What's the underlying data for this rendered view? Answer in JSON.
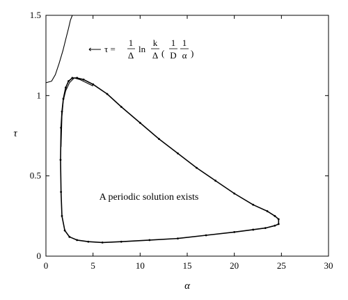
{
  "chart_data": {
    "type": "line",
    "xlabel": "α",
    "ylabel": "τ",
    "xlim": [
      0,
      30
    ],
    "ylim": [
      0,
      1.5
    ],
    "xticks": [
      "0",
      "5",
      "10",
      "15",
      "20",
      "25",
      "30"
    ],
    "yticks": [
      "0",
      "0.5",
      "1",
      "1.5"
    ],
    "grid": false,
    "series": [
      {
        "style": "solid thin",
        "x": [
          0.0,
          0.6,
          1.0,
          1.4,
          1.8,
          2.1,
          2.4,
          2.6,
          2.8
        ],
        "y": [
          1.08,
          1.09,
          1.13,
          1.2,
          1.28,
          1.35,
          1.42,
          1.47,
          1.5
        ]
      },
      {
        "style": "solid with dot markers",
        "x": [
          3.3,
          4.0,
          5.0,
          6.5,
          8.0,
          10.0,
          12.0,
          14.0,
          16.0,
          18.0,
          20.0,
          22.0,
          23.5,
          24.3,
          24.7,
          24.7,
          24.3,
          23.3,
          22.0,
          20.0,
          17.0,
          14.0,
          11.0,
          8.0,
          6.0,
          4.5,
          3.3,
          2.5,
          2.0,
          1.7,
          1.6,
          1.55,
          1.6,
          1.7,
          1.85,
          2.1,
          2.4,
          2.8,
          3.3
        ],
        "y": [
          1.11,
          1.1,
          1.07,
          1.01,
          0.93,
          0.83,
          0.73,
          0.64,
          0.55,
          0.47,
          0.39,
          0.32,
          0.28,
          0.25,
          0.23,
          0.2,
          0.19,
          0.175,
          0.165,
          0.15,
          0.13,
          0.11,
          0.1,
          0.09,
          0.085,
          0.09,
          0.1,
          0.12,
          0.16,
          0.25,
          0.4,
          0.6,
          0.8,
          0.9,
          0.98,
          1.05,
          1.09,
          1.11,
          1.11
        ]
      },
      {
        "style": "solid thin",
        "x": [
          1.6,
          1.7,
          1.85,
          2.1,
          2.5,
          3.0,
          3.6,
          4.3,
          5.0
        ],
        "y": [
          0.68,
          0.87,
          0.97,
          1.03,
          1.08,
          1.11,
          1.1,
          1.08,
          1.06
        ]
      }
    ],
    "annotations": {
      "region_label": "A periodic solution exists",
      "formula": {
        "arrow": "⟵",
        "lhs": "τ =",
        "frac1_num": "1",
        "frac1_den": "Δ",
        "ln": "ln",
        "frac2_num": "k",
        "frac2_den": "Δ",
        "lparen": "(",
        "frac3_num": "1",
        "frac3_den": "D",
        "frac4_num": "1",
        "frac4_den": "α",
        "rparen": ")"
      }
    }
  }
}
